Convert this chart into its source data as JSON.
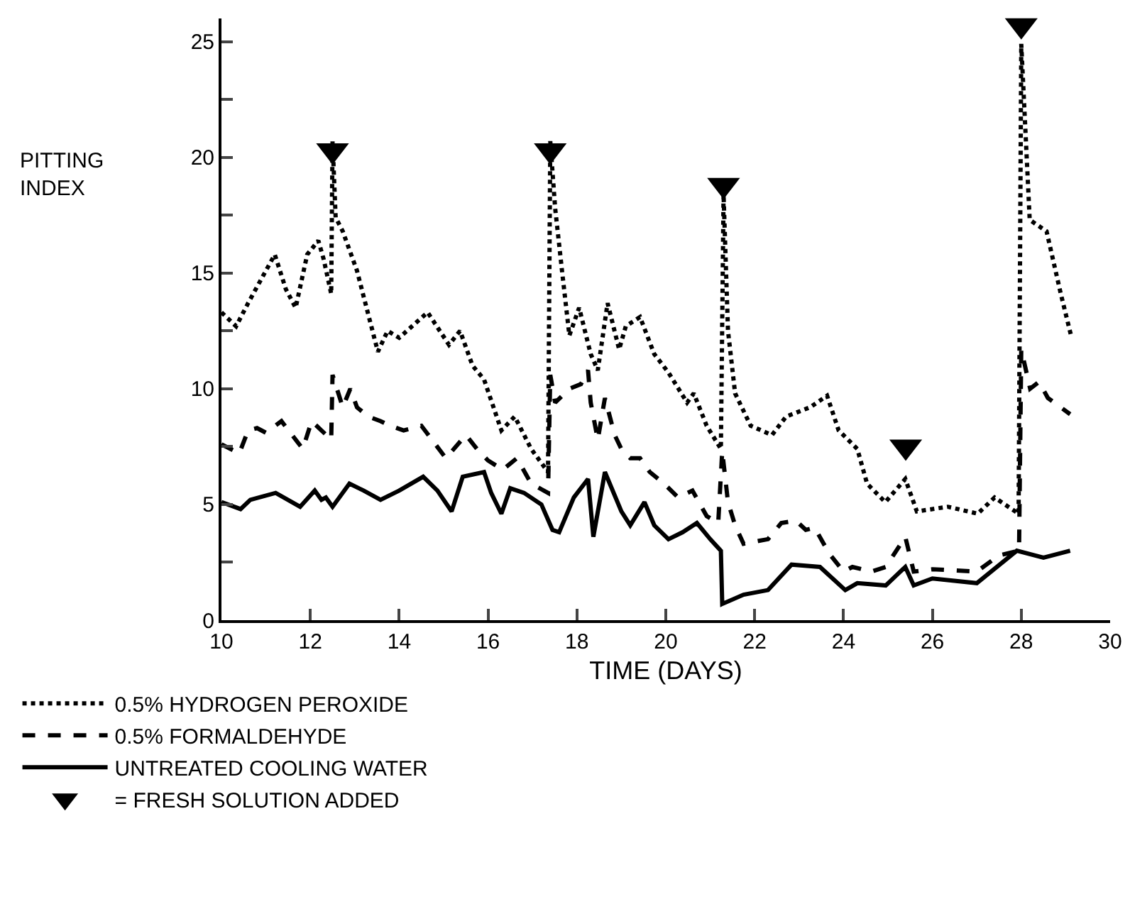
{
  "chart_data": {
    "type": "line",
    "xlabel": "TIME (DAYS)",
    "ylabel": "PITTING INDEX",
    "xlim": [
      10,
      30
    ],
    "xticks": [
      10,
      12,
      14,
      16,
      18,
      20,
      22,
      24,
      26,
      28,
      30
    ],
    "ylim": [
      0,
      26
    ],
    "yticks": [
      0,
      {
        "value": 2.5,
        "label": null
      },
      5,
      {
        "value": 7.5,
        "label": null
      },
      10,
      {
        "value": 12.5,
        "label": null
      },
      15,
      {
        "value": 17.5,
        "label": null
      },
      20,
      {
        "value": 22.5,
        "label": null
      },
      25
    ],
    "grid": false,
    "legend": "bottom left",
    "series": [
      {
        "name": "0.5% HYDROGEN PEROXIDE",
        "color": "#000000",
        "line_style": "dotted",
        "marker": "none",
        "x": [
          10.0,
          10.33,
          10.6,
          11.2,
          11.45,
          11.67,
          11.93,
          12.18,
          12.3,
          12.47,
          12.5,
          12.57,
          12.73,
          13.05,
          13.52,
          13.74,
          14.0,
          14.64,
          15.12,
          15.37,
          15.65,
          15.91,
          16.3,
          16.6,
          16.97,
          17.35,
          17.4,
          17.51,
          17.67,
          17.83,
          18.05,
          18.31,
          18.47,
          18.69,
          18.95,
          19.1,
          19.42,
          19.74,
          20.06,
          20.48,
          20.63,
          20.92,
          21.24,
          21.3,
          21.4,
          21.56,
          21.91,
          22.39,
          22.71,
          23.25,
          23.63,
          23.89,
          24.31,
          24.53,
          24.94,
          25.39,
          25.65,
          26.35,
          27.02,
          27.4,
          27.94,
          28.0,
          28.19,
          28.57,
          28.89,
          29.12
        ],
        "values": [
          13.3,
          12.7,
          13.7,
          15.8,
          14.3,
          13.5,
          15.8,
          16.4,
          15.6,
          14.1,
          20.7,
          17.4,
          16.8,
          15.1,
          11.6,
          12.5,
          12.2,
          13.3,
          11.9,
          12.5,
          11.0,
          10.4,
          8.2,
          8.8,
          7.4,
          6.4,
          20.7,
          17.8,
          15.0,
          12.3,
          13.5,
          11.5,
          10.8,
          13.7,
          11.7,
          12.7,
          13.1,
          11.5,
          10.7,
          9.4,
          9.8,
          8.4,
          7.4,
          18.4,
          12.5,
          9.8,
          8.4,
          8.0,
          8.8,
          9.2,
          9.7,
          8.2,
          7.4,
          5.9,
          5.1,
          6.1,
          4.7,
          4.9,
          4.6,
          5.3,
          4.6,
          24.9,
          17.3,
          16.8,
          14.1,
          12.3
        ]
      },
      {
        "name": "0.5% FORMALDEHYDE",
        "color": "#000000",
        "line_style": "dashed",
        "marker": "none",
        "x": [
          10.0,
          10.4,
          10.6,
          10.8,
          11.0,
          11.35,
          11.83,
          12.03,
          12.25,
          12.47,
          12.5,
          12.73,
          12.9,
          13.05,
          13.3,
          13.58,
          13.8,
          14.1,
          14.5,
          15.05,
          15.5,
          15.75,
          16.0,
          16.33,
          16.65,
          16.97,
          17.35,
          17.4,
          17.51,
          17.83,
          18.09,
          18.25,
          18.31,
          18.47,
          18.63,
          18.85,
          19.0,
          19.2,
          19.42,
          19.64,
          19.96,
          20.28,
          20.6,
          20.92,
          21.18,
          21.27,
          21.4,
          21.56,
          21.75,
          22.3,
          22.6,
          22.93,
          23.15,
          23.35,
          23.67,
          24.0,
          24.2,
          24.63,
          24.95,
          25.39,
          25.58,
          26.0,
          27.0,
          27.5,
          27.95,
          28.0,
          28.2,
          28.4,
          28.6,
          29.1
        ],
        "values": [
          7.6,
          7.2,
          8.2,
          8.3,
          8.1,
          8.6,
          7.4,
          8.6,
          8.2,
          7.8,
          10.6,
          9.2,
          10.0,
          9.2,
          8.8,
          8.6,
          8.4,
          8.2,
          8.4,
          7.0,
          8.0,
          7.4,
          6.9,
          6.5,
          7.0,
          5.9,
          5.5,
          10.6,
          9.4,
          10.0,
          10.2,
          10.8,
          9.4,
          7.8,
          9.6,
          8.0,
          7.4,
          7.0,
          7.0,
          6.4,
          5.9,
          5.3,
          5.6,
          4.5,
          4.2,
          7.3,
          5.1,
          4.1,
          3.3,
          3.5,
          4.2,
          4.3,
          3.9,
          4.0,
          2.9,
          2.1,
          2.3,
          2.1,
          2.3,
          3.6,
          2.1,
          2.2,
          2.1,
          2.8,
          3.0,
          11.7,
          10.0,
          10.3,
          9.6,
          8.9
        ]
      },
      {
        "name": "UNTREATED COOLING WATER",
        "color": "#000000",
        "line_style": "solid",
        "marker": "none",
        "x": [
          10.0,
          10.43,
          10.65,
          11.22,
          11.77,
          12.1,
          12.25,
          12.35,
          12.5,
          12.88,
          13.2,
          13.58,
          14.0,
          14.54,
          14.86,
          15.18,
          15.43,
          15.91,
          16.07,
          16.3,
          16.5,
          16.81,
          17.2,
          17.45,
          17.6,
          17.93,
          18.25,
          18.37,
          18.63,
          19.0,
          19.2,
          19.52,
          19.74,
          20.06,
          20.38,
          20.7,
          21.0,
          21.24,
          21.27,
          21.75,
          22.3,
          22.83,
          23.47,
          24.04,
          24.31,
          24.95,
          25.39,
          25.58,
          26.0,
          27.0,
          27.9,
          28.5,
          29.1
        ],
        "values": [
          5.1,
          4.8,
          5.2,
          5.5,
          4.9,
          5.6,
          5.2,
          5.3,
          4.9,
          5.9,
          5.6,
          5.2,
          5.6,
          6.2,
          5.6,
          4.7,
          6.2,
          6.4,
          5.5,
          4.6,
          5.7,
          5.5,
          5.0,
          3.9,
          3.8,
          5.3,
          6.1,
          3.6,
          6.4,
          4.7,
          4.1,
          5.1,
          4.1,
          3.5,
          3.8,
          4.2,
          3.5,
          3.0,
          0.7,
          1.1,
          1.3,
          2.4,
          2.3,
          1.3,
          1.6,
          1.5,
          2.3,
          1.5,
          1.8,
          1.6,
          3.0,
          2.7,
          3.0
        ]
      },
      {
        "name": "= FRESH SOLUTION ADDED",
        "type": "scatter",
        "color": "#000000",
        "marker": "triangle",
        "x": [
          12.5,
          17.4,
          21.3,
          25.4,
          28.0
        ],
        "values": [
          20.3,
          20.3,
          18.8,
          7.5,
          25.7
        ]
      }
    ]
  }
}
